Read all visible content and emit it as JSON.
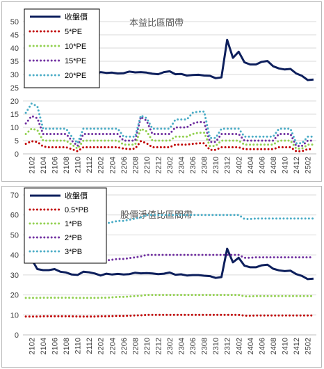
{
  "chart_data": [
    {
      "type": "line",
      "title": "本益比區間帶",
      "x": [
        "2101",
        "2102",
        "2103",
        "2104",
        "2105",
        "2106",
        "2107",
        "2108",
        "2109",
        "2110",
        "2111",
        "2112",
        "2201",
        "2202",
        "2203",
        "2204",
        "2205",
        "2206",
        "2207",
        "2208",
        "2209",
        "2210",
        "2211",
        "2212",
        "2301",
        "2302",
        "2303",
        "2304",
        "2305",
        "2306",
        "2307",
        "2308",
        "2309",
        "2310",
        "2311",
        "2312",
        "2401",
        "2402",
        "2403",
        "2404",
        "2405",
        "2406",
        "2407",
        "2408",
        "2409",
        "2410",
        "2411",
        "2412",
        "2501",
        "2502",
        "2503"
      ],
      "xticks": [
        "2102",
        "2104",
        "2106",
        "2108",
        "2110",
        "2112",
        "2202",
        "2204",
        "2206",
        "2208",
        "2210",
        "2212",
        "2302",
        "2304",
        "2306",
        "2308",
        "2310",
        "2312",
        "2402",
        "2404",
        "2406",
        "2408",
        "2410",
        "2412",
        "2502"
      ],
      "ylim": [
        0,
        50
      ],
      "yticks": [
        0,
        5,
        10,
        15,
        20,
        25,
        30,
        35,
        40,
        45,
        50
      ],
      "grid": "horizontal",
      "legend": "top-left",
      "series": [
        {
          "name": "收盤價",
          "color": "#0d1f5c",
          "style": "solid",
          "values": [
            29.5,
            29.8,
            30.0,
            30.5,
            30.8,
            31.0,
            30.6,
            30.0,
            29.7,
            30.3,
            31.3,
            31.1,
            30.0,
            30.9,
            30.6,
            30.7,
            30.4,
            30.5,
            31.1,
            30.8,
            30.9,
            30.7,
            30.3,
            30.1,
            30.9,
            31.2,
            30.1,
            30.2,
            29.6,
            29.8,
            29.9,
            29.6,
            29.5,
            28.6,
            28.9,
            43.1,
            36.3,
            38.6,
            34.6,
            33.8,
            33.8,
            34.8,
            35.1,
            33.1,
            32.3,
            31.9,
            32.1,
            30.4,
            29.5,
            27.9,
            28.1
          ]
        },
        {
          "name": "5*PE",
          "color": "#c00000",
          "style": "dotted",
          "values": [
            3.8,
            4.8,
            4.5,
            2.8,
            2.5,
            2.5,
            2.5,
            2.5,
            1.8,
            1.0,
            2.5,
            2.5,
            2.5,
            2.5,
            2.5,
            2.5,
            2.5,
            2.0,
            1.8,
            2.0,
            4.8,
            4.0,
            2.5,
            2.5,
            2.5,
            2.5,
            3.5,
            3.5,
            3.5,
            3.8,
            4.0,
            4.0,
            1.5,
            1.5,
            2.5,
            2.5,
            2.5,
            2.5,
            1.8,
            1.8,
            1.8,
            1.8,
            1.8,
            1.8,
            2.5,
            2.5,
            2.5,
            1.0,
            1.0,
            1.8,
            1.8
          ]
        },
        {
          "name": "10*PE",
          "color": "#92d050",
          "style": "dotted",
          "values": [
            7.5,
            9.5,
            9.0,
            5.0,
            5.0,
            5.0,
            5.0,
            5.0,
            3.5,
            2.0,
            5.0,
            5.0,
            5.0,
            5.0,
            5.0,
            5.0,
            5.0,
            3.5,
            3.5,
            3.5,
            9.5,
            8.5,
            5.0,
            5.0,
            5.0,
            5.0,
            6.5,
            6.5,
            6.5,
            7.5,
            8.0,
            8.0,
            3.0,
            3.0,
            5.0,
            5.0,
            5.0,
            5.0,
            3.5,
            3.5,
            3.5,
            3.5,
            3.5,
            3.5,
            5.0,
            5.0,
            5.0,
            2.0,
            2.0,
            3.5,
            3.5
          ]
        },
        {
          "name": "15*PE",
          "color": "#7030a0",
          "style": "dotted",
          "values": [
            11.5,
            14.3,
            13.5,
            7.5,
            7.5,
            7.5,
            7.5,
            7.5,
            5.0,
            3.0,
            7.5,
            7.5,
            7.5,
            7.5,
            7.5,
            7.5,
            7.5,
            5.0,
            5.0,
            5.0,
            14.0,
            12.5,
            7.5,
            7.5,
            7.5,
            7.5,
            10.0,
            10.0,
            10.0,
            11.5,
            12.0,
            12.0,
            4.5,
            4.5,
            7.5,
            7.5,
            7.5,
            7.5,
            5.0,
            5.0,
            5.0,
            5.0,
            5.0,
            5.0,
            7.5,
            7.5,
            7.5,
            3.0,
            3.0,
            5.0,
            5.0
          ]
        },
        {
          "name": "20*PE",
          "color": "#4bacc6",
          "style": "dotted",
          "values": [
            15.5,
            19.0,
            18.0,
            9.5,
            9.5,
            9.5,
            9.5,
            9.5,
            6.5,
            4.0,
            9.5,
            9.5,
            9.5,
            9.5,
            9.5,
            9.5,
            9.5,
            6.5,
            6.5,
            6.5,
            14.5,
            13.5,
            9.5,
            9.5,
            9.5,
            9.5,
            13.0,
            13.0,
            13.0,
            15.5,
            16.0,
            16.0,
            6.0,
            6.0,
            9.5,
            9.5,
            9.5,
            9.5,
            6.5,
            6.5,
            6.5,
            6.5,
            6.5,
            6.5,
            9.5,
            9.5,
            9.5,
            4.0,
            4.0,
            6.5,
            6.5
          ]
        }
      ]
    },
    {
      "type": "line",
      "title": "股價淨值比區間帶",
      "x": [
        "2101",
        "2102",
        "2103",
        "2104",
        "2105",
        "2106",
        "2107",
        "2108",
        "2109",
        "2110",
        "2111",
        "2112",
        "2201",
        "2202",
        "2203",
        "2204",
        "2205",
        "2206",
        "2207",
        "2208",
        "2209",
        "2210",
        "2211",
        "2212",
        "2301",
        "2302",
        "2303",
        "2304",
        "2305",
        "2306",
        "2307",
        "2308",
        "2309",
        "2310",
        "2311",
        "2312",
        "2401",
        "2402",
        "2403",
        "2404",
        "2405",
        "2406",
        "2407",
        "2408",
        "2409",
        "2410",
        "2411",
        "2412",
        "2501",
        "2502",
        "2503"
      ],
      "xticks": [
        "2102",
        "2104",
        "2106",
        "2108",
        "2110",
        "2112",
        "2202",
        "2204",
        "2206",
        "2208",
        "2210",
        "2212",
        "2302",
        "2304",
        "2306",
        "2308",
        "2310",
        "2312",
        "2402",
        "2404",
        "2406",
        "2408",
        "2410",
        "2412",
        "2502"
      ],
      "ylim": [
        0,
        70
      ],
      "yticks": [
        0,
        10,
        20,
        30,
        40,
        50,
        60,
        70
      ],
      "grid": "horizontal",
      "legend": "top-left",
      "series": [
        {
          "name": "收盤價",
          "color": "#0d1f5c",
          "style": "solid",
          "values": [
            36.3,
            37.9,
            32.9,
            32.4,
            32.4,
            32.9,
            31.6,
            31.2,
            30.2,
            30.0,
            31.6,
            31.3,
            30.7,
            29.7,
            30.6,
            30.2,
            30.5,
            30.2,
            30.4,
            31.1,
            30.8,
            30.9,
            30.7,
            30.4,
            30.6,
            31.2,
            30.1,
            30.3,
            29.7,
            29.9,
            29.9,
            29.6,
            29.4,
            28.5,
            28.9,
            43.1,
            36.3,
            38.6,
            34.6,
            33.8,
            33.8,
            34.8,
            35.1,
            33.1,
            32.3,
            31.9,
            32.1,
            30.4,
            29.5,
            27.9,
            28.1
          ]
        },
        {
          "name": "0.5*PB",
          "color": "#c00000",
          "style": "dotted",
          "values": [
            9.2,
            9.2,
            9.2,
            9.3,
            9.3,
            9.3,
            9.3,
            9.3,
            9.3,
            9.2,
            9.2,
            9.2,
            9.2,
            9.3,
            9.3,
            9.4,
            9.5,
            9.5,
            9.6,
            9.7,
            9.8,
            10.0,
            10.0,
            10.0,
            10.0,
            10.0,
            10.0,
            10.0,
            10.0,
            10.0,
            10.0,
            10.0,
            10.0,
            10.0,
            10.0,
            10.0,
            10.0,
            10.0,
            9.6,
            9.6,
            9.7,
            9.7,
            9.7,
            9.7,
            9.7,
            9.7,
            9.7,
            9.7,
            9.7,
            9.7,
            9.7
          ]
        },
        {
          "name": "1*PB",
          "color": "#92d050",
          "style": "dotted",
          "values": [
            18.5,
            18.5,
            18.5,
            18.6,
            18.6,
            18.6,
            18.6,
            18.6,
            18.6,
            18.5,
            18.5,
            18.5,
            18.5,
            18.6,
            18.6,
            18.8,
            19.0,
            19.0,
            19.2,
            19.4,
            19.6,
            20.0,
            20.0,
            20.0,
            20.0,
            20.0,
            20.0,
            20.0,
            20.0,
            20.0,
            20.0,
            20.0,
            20.0,
            20.0,
            20.0,
            20.0,
            20.0,
            20.0,
            19.3,
            19.3,
            19.4,
            19.4,
            19.4,
            19.4,
            19.4,
            19.4,
            19.4,
            19.4,
            19.4,
            19.4,
            19.4
          ]
        },
        {
          "name": "2*PB",
          "color": "#7030a0",
          "style": "dotted",
          "values": [
            37.0,
            37.0,
            37.0,
            37.2,
            37.2,
            37.2,
            37.2,
            37.2,
            37.2,
            37.0,
            37.0,
            37.0,
            37.0,
            37.2,
            37.2,
            37.6,
            38.0,
            38.0,
            38.4,
            38.8,
            39.2,
            40.0,
            40.0,
            40.0,
            40.0,
            40.0,
            40.0,
            40.0,
            40.0,
            40.0,
            40.0,
            40.0,
            40.0,
            40.0,
            40.0,
            40.0,
            40.0,
            40.0,
            38.6,
            38.6,
            38.8,
            38.8,
            38.8,
            38.8,
            38.8,
            38.8,
            38.8,
            38.8,
            38.8,
            38.8,
            38.8
          ]
        },
        {
          "name": "3*PB",
          "color": "#4bacc6",
          "style": "dotted",
          "values": [
            55.5,
            55.5,
            55.5,
            55.8,
            55.8,
            55.8,
            55.8,
            55.8,
            55.8,
            55.5,
            55.5,
            55.5,
            55.5,
            55.8,
            55.8,
            56.4,
            57.0,
            57.0,
            57.6,
            58.2,
            58.8,
            60.0,
            60.0,
            60.0,
            60.0,
            60.0,
            60.0,
            60.0,
            60.0,
            60.0,
            60.0,
            60.0,
            60.0,
            60.0,
            60.0,
            60.0,
            60.0,
            60.0,
            58.0,
            58.0,
            58.2,
            58.2,
            58.2,
            58.2,
            58.2,
            58.2,
            58.2,
            58.2,
            58.2,
            58.2,
            58.2
          ]
        }
      ]
    }
  ]
}
